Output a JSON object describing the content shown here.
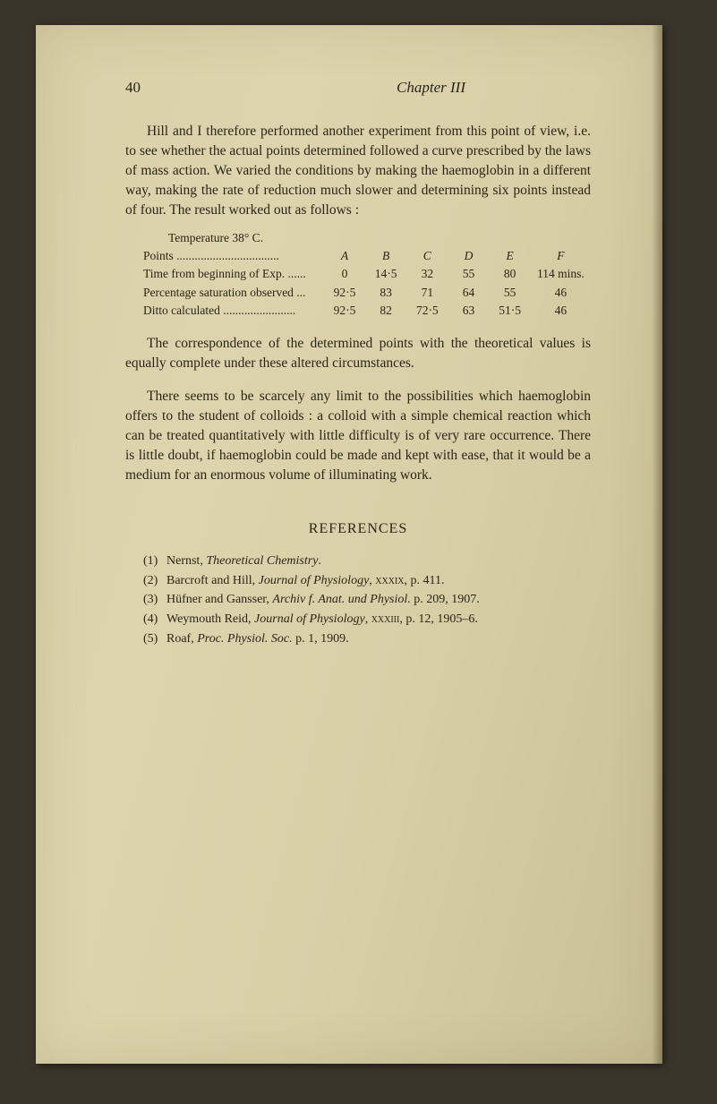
{
  "page_number": "40",
  "chapter_title": "Chapter III",
  "paragraphs": {
    "p1": "Hill and I therefore performed another experiment from this point of view, i.e. to see whether the actual points determined followed a curve prescribed by the laws of mass action. We varied the conditions by making the haemoglobin in a different way, making the rate of reduction much slower and determining six points instead of four. The result worked out as follows :",
    "p2": "The correspondence of the determined points with the theoretical values is equally complete under these altered circumstances.",
    "p3": "There seems to be scarcely any limit to the possibilities which haemoglobin offers to the student of colloids : a colloid with a simple chemical reaction which can be treated quantitatively with little difficulty is of very rare occurrence. There is little doubt, if haemo­globin could be made and kept with ease, that it would be a medium for an enormous volume of illuminating work."
  },
  "table": {
    "title": "Temperature 38° C.",
    "rows": [
      {
        "label": "Points ..................................",
        "cells": [
          "A",
          "B",
          "C",
          "D",
          "E",
          "F"
        ],
        "header": true
      },
      {
        "label": "Time from beginning of Exp. ......",
        "cells": [
          "0",
          "14·5",
          "32",
          "55",
          "80",
          "114 mins."
        ],
        "header": false
      },
      {
        "label": "Percentage saturation observed ...",
        "cells": [
          "92·5",
          "83",
          "71",
          "64",
          "55",
          "46"
        ],
        "header": false
      },
      {
        "label": "Ditto calculated ........................",
        "cells": [
          "92·5",
          "82",
          "72·5",
          "63",
          "51·5",
          "46"
        ],
        "header": false
      }
    ]
  },
  "references": {
    "heading": "REFERENCES",
    "items": [
      {
        "num": "(1)",
        "html": "Nernst, <i>Theoretical Chemistry</i>."
      },
      {
        "num": "(2)",
        "html": "Barcroft and Hill, <i>Journal of Physiology</i>, <span class='smallcaps'>xxxix</span>, p. 411."
      },
      {
        "num": "(3)",
        "html": "Hüfner and Gansser, <i>Archiv f. Anat. und Physiol.</i> p. 209, 1907."
      },
      {
        "num": "(4)",
        "html": "Weymouth Reid, <i>Journal of Physiology</i>, <span class='smallcaps'>xxxiii</span>, p. 12, 1905–6."
      },
      {
        "num": "(5)",
        "html": "Roaf, <i>Proc. Physiol. Soc.</i> p. 1, 1909."
      }
    ]
  }
}
